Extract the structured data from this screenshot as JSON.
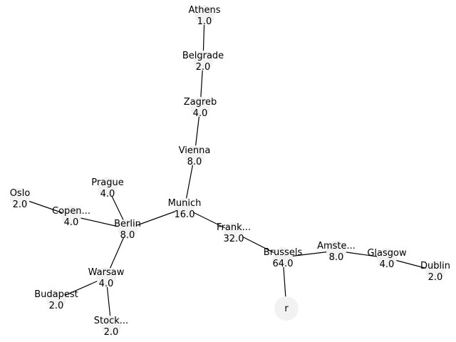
{
  "diagram": {
    "nodes": [
      {
        "id": "athens",
        "name": "Athens",
        "value": "1.0"
      },
      {
        "id": "belgrade",
        "name": "Belgrade",
        "value": "2.0"
      },
      {
        "id": "zagreb",
        "name": "Zagreb",
        "value": "4.0"
      },
      {
        "id": "vienna",
        "name": "Vienna",
        "value": "8.0"
      },
      {
        "id": "munich",
        "name": "Munich",
        "value": "16.0"
      },
      {
        "id": "prague",
        "name": "Prague",
        "value": "4.0"
      },
      {
        "id": "oslo",
        "name": "Oslo",
        "value": "2.0"
      },
      {
        "id": "copenhagen",
        "name": "Copen...",
        "value": "4.0"
      },
      {
        "id": "berlin",
        "name": "Berlin",
        "value": "8.0"
      },
      {
        "id": "frankfurt",
        "name": "Frank...",
        "value": "32.0"
      },
      {
        "id": "brussels",
        "name": "Brussels",
        "value": "64.0"
      },
      {
        "id": "amsterdam",
        "name": "Amste...",
        "value": "8.0"
      },
      {
        "id": "glasgow",
        "name": "Glasgow",
        "value": "4.0"
      },
      {
        "id": "dublin",
        "name": "Dublin",
        "value": "2.0"
      },
      {
        "id": "warsaw",
        "name": "Warsaw",
        "value": "4.0"
      },
      {
        "id": "budapest",
        "name": "Budapest",
        "value": "2.0"
      },
      {
        "id": "stockholm",
        "name": "Stock...",
        "value": "2.0"
      },
      {
        "id": "root",
        "name": "r",
        "value": ""
      }
    ],
    "edges": [
      [
        "athens",
        "belgrade"
      ],
      [
        "belgrade",
        "zagreb"
      ],
      [
        "zagreb",
        "vienna"
      ],
      [
        "vienna",
        "munich"
      ],
      [
        "munich",
        "berlin"
      ],
      [
        "munich",
        "frankfurt"
      ],
      [
        "berlin",
        "prague"
      ],
      [
        "berlin",
        "copenhagen"
      ],
      [
        "copenhagen",
        "oslo"
      ],
      [
        "berlin",
        "warsaw"
      ],
      [
        "warsaw",
        "budapest"
      ],
      [
        "warsaw",
        "stockholm"
      ],
      [
        "frankfurt",
        "brussels"
      ],
      [
        "brussels",
        "amsterdam"
      ],
      [
        "brussels",
        "root"
      ],
      [
        "amsterdam",
        "glasgow"
      ],
      [
        "glasgow",
        "dublin"
      ]
    ]
  }
}
